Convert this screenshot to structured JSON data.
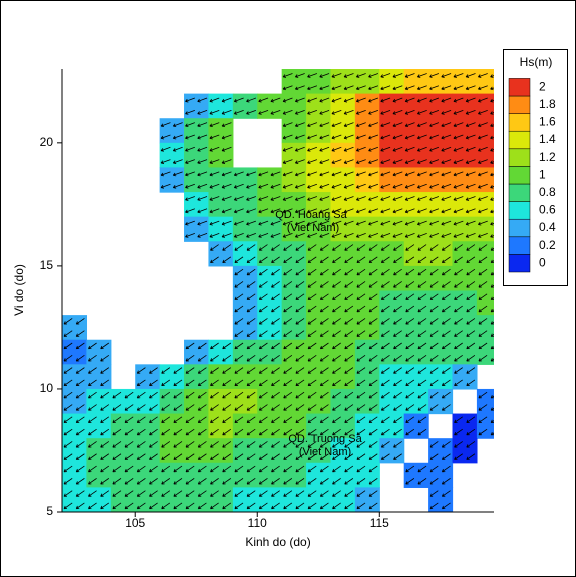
{
  "chart_data": {
    "type": "contour",
    "xlabel": "Kinh do (do)",
    "ylabel": "Vi do (do)",
    "xlim": [
      102,
      119.7
    ],
    "ylim": [
      5,
      23
    ],
    "xticks": [
      105,
      110,
      115
    ],
    "yticks": [
      5,
      10,
      15,
      20
    ],
    "annotations": [
      {
        "text": "QD. Hoang Sa",
        "sub": "(Viet Nam)"
      },
      {
        "text": "QD. Truong Sa",
        "sub": "(Viet Nam)"
      }
    ],
    "colorbar": {
      "title": "Hs(m)",
      "levels": [
        0,
        0.2,
        0.4,
        0.6,
        0.8,
        1,
        1.2,
        1.4,
        1.6,
        1.8,
        2
      ],
      "colors": [
        "#0a28f0",
        "#1e78ff",
        "#35aaf5",
        "#1ee6dc",
        "#3cd77a",
        "#62d835",
        "#9ee01a",
        "#dbe80a",
        "#ffc814",
        "#ff8c14",
        "#e8321e"
      ]
    },
    "field": {
      "lon": [
        102,
        103,
        104,
        105,
        106,
        107,
        108,
        109,
        110,
        111,
        112,
        113,
        114,
        115,
        116,
        117,
        118,
        119
      ],
      "lat": [
        22,
        21,
        20,
        19,
        18,
        17,
        16,
        15,
        14,
        13,
        12,
        11,
        10,
        9,
        8,
        7,
        6,
        5
      ],
      "hs": [
        [
          null,
          null,
          null,
          null,
          null,
          null,
          null,
          null,
          null,
          1.0,
          1.1,
          1.2,
          1.3,
          1.5,
          1.6,
          1.7,
          1.7,
          1.6
        ],
        [
          null,
          null,
          null,
          null,
          null,
          0.5,
          0.7,
          0.9,
          1.0,
          1.1,
          1.3,
          1.5,
          1.8,
          2.1,
          2.2,
          2.2,
          2.2,
          2.1
        ],
        [
          null,
          null,
          null,
          null,
          0.5,
          0.8,
          1.0,
          null,
          null,
          1.1,
          1.3,
          1.5,
          1.9,
          2.2,
          2.3,
          2.3,
          2.3,
          2.2
        ],
        [
          null,
          null,
          null,
          null,
          0.6,
          0.9,
          1.0,
          null,
          null,
          1.2,
          1.4,
          1.6,
          1.8,
          2.0,
          2.2,
          2.2,
          2.2,
          2.0
        ],
        [
          null,
          null,
          null,
          null,
          0.4,
          0.8,
          0.9,
          0.9,
          1.0,
          1.2,
          1.4,
          1.5,
          1.6,
          1.8,
          1.9,
          1.9,
          1.9,
          1.8
        ],
        [
          null,
          null,
          null,
          null,
          null,
          0.6,
          0.8,
          0.9,
          1.0,
          1.1,
          1.2,
          1.4,
          1.5,
          1.5,
          1.5,
          1.5,
          1.5,
          1.4
        ],
        [
          null,
          null,
          null,
          null,
          null,
          0.4,
          0.6,
          0.8,
          0.9,
          1.0,
          1.1,
          1.2,
          1.3,
          1.3,
          1.3,
          1.3,
          1.3,
          1.2
        ],
        [
          null,
          null,
          null,
          null,
          null,
          null,
          0.4,
          0.6,
          0.8,
          0.9,
          1.0,
          1.1,
          1.1,
          1.1,
          1.2,
          1.2,
          1.1,
          1.1
        ],
        [
          null,
          null,
          null,
          null,
          null,
          null,
          null,
          0.5,
          0.7,
          0.9,
          1.0,
          1.0,
          1.1,
          1.0,
          1.0,
          1.0,
          1.0,
          1.0
        ],
        [
          null,
          null,
          null,
          null,
          null,
          null,
          null,
          0.5,
          0.7,
          0.9,
          1.0,
          1.1,
          1.1,
          0.9,
          0.9,
          0.9,
          0.9,
          1.0
        ],
        [
          0.4,
          null,
          null,
          null,
          null,
          null,
          null,
          0.5,
          0.7,
          0.9,
          1.0,
          1.1,
          1.0,
          0.8,
          0.8,
          0.8,
          0.8,
          0.9
        ],
        [
          0.3,
          0.4,
          null,
          null,
          null,
          0.4,
          0.6,
          0.8,
          0.9,
          1.0,
          1.0,
          1.0,
          0.9,
          0.8,
          0.8,
          0.8,
          0.8,
          0.8
        ],
        [
          0.4,
          0.5,
          null,
          0.5,
          0.7,
          0.9,
          1.1,
          1.1,
          1.1,
          1.1,
          1.0,
          1.0,
          0.8,
          0.7,
          0.7,
          0.6,
          0.5,
          null
        ],
        [
          0.5,
          0.6,
          0.6,
          0.7,
          0.9,
          1.1,
          1.2,
          1.2,
          1.1,
          1.0,
          1.0,
          0.9,
          0.8,
          0.7,
          0.6,
          0.4,
          null,
          0.2
        ],
        [
          0.6,
          0.7,
          0.8,
          0.9,
          1.0,
          1.1,
          1.2,
          1.1,
          1.0,
          1.0,
          0.9,
          0.8,
          0.7,
          0.6,
          0.3,
          null,
          0.1,
          0.2
        ],
        [
          0.7,
          0.8,
          0.8,
          0.9,
          1.0,
          1.0,
          1.0,
          0.9,
          0.9,
          0.9,
          0.8,
          0.7,
          0.6,
          0.4,
          null,
          0.2,
          0.1,
          null
        ],
        [
          0.7,
          0.8,
          0.8,
          0.9,
          0.9,
          0.9,
          0.8,
          0.8,
          0.8,
          0.8,
          0.7,
          0.6,
          0.6,
          null,
          0.2,
          0.3,
          null,
          null
        ],
        [
          0.7,
          0.7,
          0.8,
          0.8,
          0.8,
          0.8,
          0.8,
          0.7,
          0.7,
          0.7,
          0.6,
          0.6,
          0.4,
          null,
          null,
          0.3,
          null,
          null
        ]
      ]
    }
  }
}
